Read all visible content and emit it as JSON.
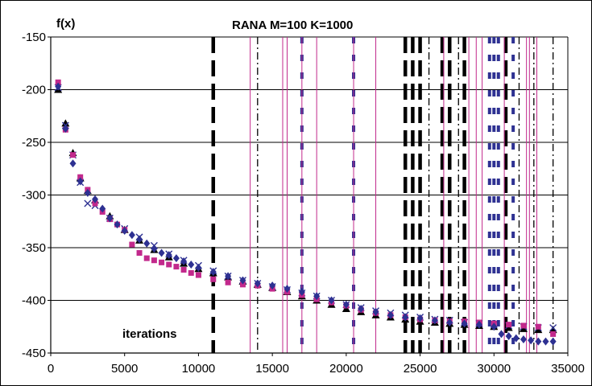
{
  "chart_data": {
    "type": "scatter",
    "title": "RANA M=100 K=1000",
    "ylabel": "f(x)",
    "xlabel": "iterations",
    "xlim": [
      0,
      35000
    ],
    "ylim": [
      -450,
      -150
    ],
    "xticks": [
      0,
      5000,
      10000,
      15000,
      20000,
      25000,
      30000,
      35000
    ],
    "yticks": [
      -150,
      -200,
      -250,
      -300,
      -350,
      -400,
      -450
    ],
    "grid": "horizontal",
    "series": [
      {
        "marker": "triangle",
        "color": "#000000",
        "x": [
          500,
          1000,
          1500,
          2000,
          2500,
          3000,
          4000,
          5000,
          6000,
          7000,
          8000,
          9000,
          10000,
          11000,
          12000,
          13000,
          14000,
          15000,
          16000,
          17000,
          18000,
          19000,
          20000,
          21000,
          22000,
          23000,
          24000,
          25000,
          26000,
          27000,
          28000,
          29000,
          30000,
          31000,
          32000,
          33000,
          34000
        ],
        "y": [
          -200,
          -232,
          -260,
          -284,
          -296,
          -305,
          -320,
          -333,
          -343,
          -352,
          -359,
          -365,
          -370,
          -374,
          -378,
          -382,
          -385,
          -388,
          -392,
          -396,
          -400,
          -404,
          -408,
          -411,
          -414,
          -416,
          -418,
          -420,
          -421,
          -422,
          -423,
          -424,
          -425,
          -426,
          -427,
          -428,
          -428
        ]
      },
      {
        "marker": "x",
        "color": "#2e3192",
        "x": [
          500,
          1000,
          1500,
          2000,
          2500,
          3000,
          4000,
          5000,
          6000,
          7000,
          8000,
          9000,
          10000,
          11000,
          12000,
          13000,
          14000,
          15000,
          16000,
          17000,
          18000,
          19000,
          20000,
          21000,
          22000,
          23000,
          24000,
          25000,
          26000,
          27000,
          28000,
          29000,
          30000,
          31000,
          32000,
          33000,
          34000
        ],
        "y": [
          -198,
          -234,
          -262,
          -288,
          -308,
          -310,
          -322,
          -332,
          -340,
          -348,
          -356,
          -362,
          -367,
          -372,
          -377,
          -381,
          -384,
          -387,
          -390,
          -393,
          -396,
          -400,
          -404,
          -407,
          -410,
          -412,
          -414,
          -416,
          -418,
          -419,
          -421,
          -422,
          -423,
          -424,
          -425,
          -426,
          -426
        ]
      },
      {
        "marker": "square",
        "color": "#c2298c",
        "x": [
          500,
          1000,
          1500,
          2000,
          2500,
          3000,
          3500,
          4000,
          4500,
          5000,
          5500,
          6000,
          6500,
          7000,
          7500,
          8000,
          8500,
          9000,
          9500,
          10000,
          11000,
          12000,
          13000,
          14000,
          15000,
          16000,
          17000,
          18000,
          19000,
          20000,
          21000,
          22000,
          23000,
          24000,
          25000,
          26000,
          27000,
          28000,
          29000,
          30000,
          31000,
          32000,
          33000,
          34000
        ],
        "y": [
          -193,
          -238,
          -262,
          -283,
          -295,
          -308,
          -316,
          -323,
          -328,
          -333,
          -347,
          -355,
          -360,
          -362,
          -364,
          -366,
          -368,
          -371,
          -374,
          -376,
          -380,
          -383,
          -385,
          -386,
          -389,
          -392,
          -395,
          -399,
          -402,
          -405,
          -409,
          -412,
          -414,
          -416,
          -418,
          -419,
          -420,
          -420,
          -421,
          -422,
          -423,
          -424,
          -425,
          -432
        ]
      },
      {
        "marker": "diamond",
        "color": "#2e3192",
        "x": [
          500,
          1000,
          1500,
          2000,
          2500,
          3000,
          3500,
          4000,
          4500,
          5000,
          5500,
          6000,
          6500,
          7000,
          7500,
          8000,
          8500,
          9000,
          9500,
          10000,
          11000,
          12000,
          13000,
          14000,
          15000,
          16000,
          17000,
          18000,
          19000,
          20000,
          21000,
          22000,
          23000,
          24000,
          25000,
          26000,
          27000,
          28000,
          29000,
          30000,
          30500,
          31000,
          31500,
          32000,
          32500,
          33000,
          33500,
          34000
        ],
        "y": [
          -197,
          -237,
          -270,
          -287,
          -298,
          -304,
          -313,
          -322,
          -328,
          -334,
          -338,
          -342,
          -346,
          -351,
          -355,
          -357,
          -360,
          -363,
          -366,
          -369,
          -373,
          -377,
          -381,
          -384,
          -386,
          -389,
          -392,
          -396,
          -400,
          -404,
          -408,
          -411,
          -414,
          -416,
          -417,
          -419,
          -421,
          -422,
          -423,
          -425,
          -432,
          -434,
          -436,
          -437,
          -438,
          -439,
          -439,
          -439
        ]
      }
    ],
    "vlines": [
      {
        "style": "long-dash",
        "color": "#000000",
        "x": [
          11000,
          24000,
          24500,
          25000,
          26500,
          27000,
          28000,
          30800
        ]
      },
      {
        "style": "dash-dot",
        "color": "#000000",
        "x": [
          14000,
          25600,
          27600,
          31700,
          32700,
          34000
        ]
      },
      {
        "style": "dotted-thick",
        "color": "#2e3192",
        "x": [
          17000,
          20500,
          29700,
          30000,
          30300,
          31300
        ]
      },
      {
        "style": "solid-thin",
        "color": "#c2298c",
        "x": [
          13500,
          15700,
          16000,
          17000,
          18000,
          20500,
          22000,
          26600,
          28300,
          28800,
          29200,
          30700,
          32200,
          32400,
          32900
        ]
      }
    ]
  }
}
